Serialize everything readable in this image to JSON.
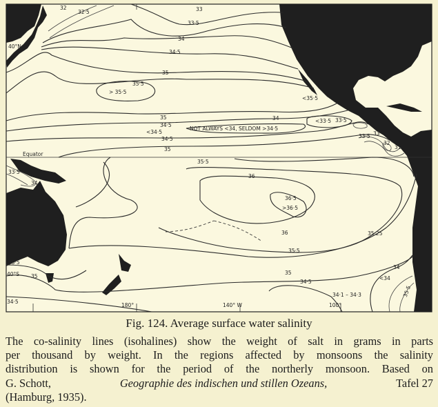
{
  "map": {
    "colors": {
      "land": "#1f1f1f",
      "ocean": "#fbf8df",
      "paper": "#f5f1d0"
    },
    "graticule": {
      "lat_40n": "40°N",
      "equator": "Equator",
      "lat_40s": "40°S",
      "lon_180": "180°",
      "lon_140w": "140° W",
      "lon_100": "100°"
    },
    "isohaline_labels": {
      "n32": "32",
      "n32_5": "32·5",
      "n33": "33",
      "n33_5": "33·5",
      "n34": "34",
      "n34_5": "34·5",
      "n35": "35",
      "n35_5": "35·5",
      "n_gt35_5": "> 35·5",
      "c35": "35",
      "c34_5a": "34·5",
      "c_lt34_5": "<34·5",
      "c34_5b": "34·5",
      "c35b": "35",
      "baja_lt35_5": "<35·5",
      "not_always": "NOT ALWAYS <34, SELDOM >34·5",
      "e34": "34",
      "e_lt33_5": "<33·5",
      "e33_5": "33·5",
      "pan33_5": "33·5",
      "pan33": "33",
      "pan32": "32",
      "pan31": "31",
      "s35_5": "35·5",
      "s36a": "36",
      "s36_5": "36·5",
      "s_gt36_5": ">36·5",
      "s36b": "36",
      "s35_25": "35·25",
      "s35_5b": "35·5",
      "s35": "35",
      "s34_5": "34·5",
      "s34": "34",
      "s_lt34": "<34",
      "s35_5c": "35·5",
      "s34_1_34_3": "34·1 – 34·3",
      "w33_5": "33·5",
      "w34": "34",
      "w35_5": "35·5",
      "w35": "35",
      "w34_5": "34·5"
    }
  },
  "caption": {
    "title": "Fig. 124.  Average surface water salinity",
    "lines": [
      "The co-salinity lines (isohalines) show the weight of salt in grams in parts",
      "per thousand by weight.  In the regions affected by monsoons the salinity",
      "distribution is shown for the period of the northerly monsoon.  Based on"
    ],
    "line4_author": "G. Schott,",
    "line4_book": "Geographie des indischen und stillen Ozeans,",
    "line4_plate": "Tafel 27",
    "line5": "(Hamburg, 1935)."
  }
}
